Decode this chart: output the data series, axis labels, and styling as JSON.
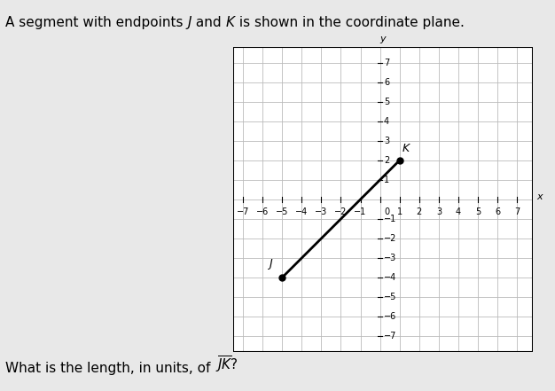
{
  "title_text": "A segment with endpoints J and K is shown in the coordinate plane.",
  "J": [
    -5,
    -4
  ],
  "K": [
    1,
    2
  ],
  "xlim": [
    -7.5,
    7.8
  ],
  "ylim": [
    -7.8,
    7.8
  ],
  "xticks": [
    -7,
    -6,
    -5,
    -4,
    -3,
    -2,
    -1,
    0,
    1,
    2,
    3,
    4,
    5,
    6,
    7
  ],
  "yticks": [
    -7,
    -6,
    -5,
    -4,
    -3,
    -2,
    -1,
    1,
    2,
    3,
    4,
    5,
    6,
    7
  ],
  "grid_color": "#bbbbbb",
  "line_color": "#000000",
  "point_color": "#000000",
  "label_J": "J",
  "label_K": "K",
  "background_color": "#e8e8e8",
  "axes_label_x": "x",
  "axes_label_y": "y",
  "font_size_title": 11,
  "font_size_question": 11,
  "font_size_ticks": 7,
  "font_size_point_labels": 9
}
